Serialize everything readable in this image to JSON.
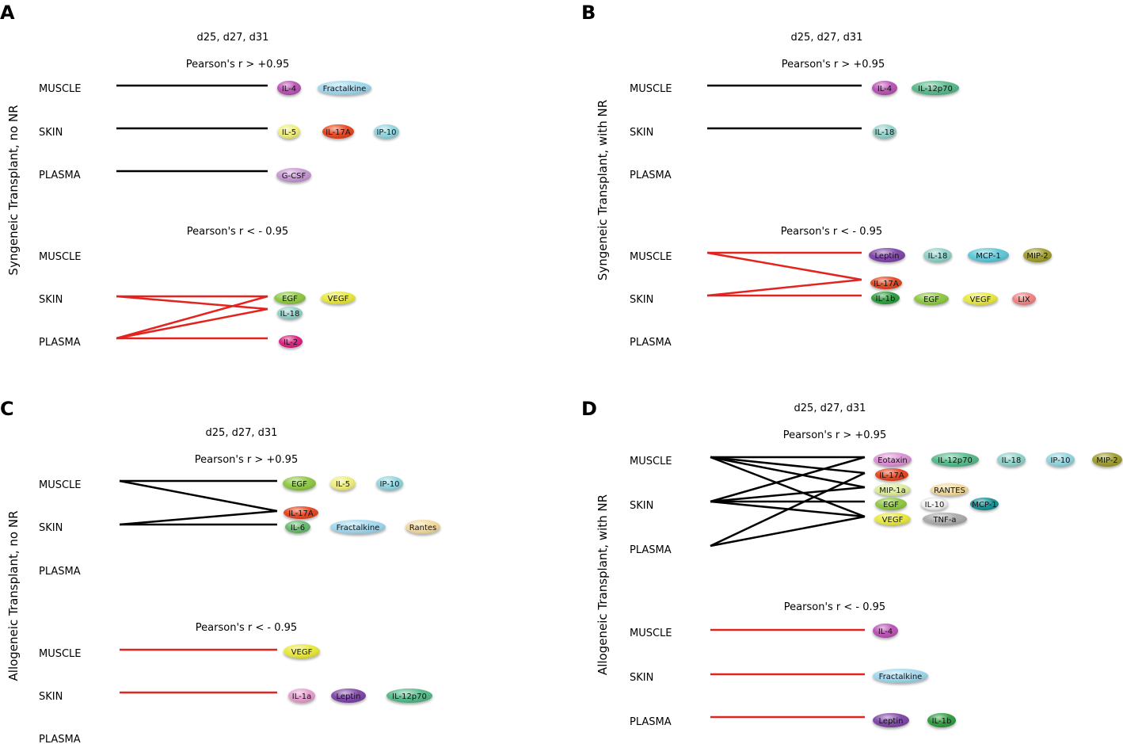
{
  "colors": {
    "positive_line": "#000000",
    "negative_line": "#e3231e",
    "IL-4": "#b74fb2",
    "Fractalkine": "#9fd7ee",
    "IL-5": "#eeee7a",
    "IL-17A": "#e3421c",
    "IP-10": "#8fd4de",
    "G-CSF": "#c595d2",
    "EGF": "#8cc63f",
    "VEGF": "#e8e83a",
    "IL-18": "#8fd0c8",
    "IL-2": "#d91d7d",
    "IL-12p70": "#52b888",
    "Leptin": "#7b43a6",
    "MCP-1": "#5bc5d6",
    "MIP-2": "#9c9a2b",
    "IL-1b": "#2c9a3a",
    "LIX": "#f07f80",
    "IL-6": "#62b86b",
    "Rantes": "#f2d99b",
    "RANTES": "#f2d99b",
    "IL-1a": "#e69ccd",
    "Eotaxin": "#d88fd1",
    "MIP-1a": "#dcec9a",
    "IL-10": "#f4f4f4",
    "TNF-a": "#a9a9a9",
    "MCP-1 (teal)": "#138e93"
  },
  "panels": [
    {
      "letter": "A",
      "title": "Syngeneic Transplant, no NR",
      "days": "d25, d27, d31",
      "pos_header": "Pearson's r > +0.95",
      "neg_header": "Pearson's r < - 0.95",
      "pos_rows": [
        "MUSCLE",
        "SKIN",
        "PLASMA"
      ],
      "neg_rows": [
        "MUSCLE",
        "SKIN",
        "PLASMA"
      ],
      "pos_cytokines": [
        "IL-4",
        "Fractalkine",
        "IL-5",
        "IL-17A",
        "IP-10",
        "G-CSF"
      ],
      "neg_cytokines": [
        "EGF",
        "VEGF",
        "IL-18",
        "IL-2"
      ]
    },
    {
      "letter": "B",
      "title": "Syngeneic Transplant, with NR",
      "days": "d25, d27, d31",
      "pos_header": "Pearson's r > +0.95",
      "neg_header": "Pearson's r < - 0.95",
      "pos_rows": [
        "MUSCLE",
        "SKIN",
        "PLASMA"
      ],
      "neg_rows": [
        "MUSCLE",
        "SKIN",
        "PLASMA"
      ],
      "pos_cytokines": [
        "IL-4",
        "IL-12p70",
        "IL-18"
      ],
      "neg_cytokines": [
        "Leptin",
        "IL-18",
        "MCP-1",
        "MIP-2",
        "IL-17A",
        "IL-1b",
        "EGF",
        "VEGF",
        "LIX"
      ]
    },
    {
      "letter": "C",
      "title": "Allogeneic Transplant, no NR",
      "days": "d25, d27, d31",
      "pos_header": "Pearson's r > +0.95",
      "neg_header": "Pearson's r < - 0.95",
      "pos_rows": [
        "MUSCLE",
        "SKIN",
        "PLASMA"
      ],
      "neg_rows": [
        "MUSCLE",
        "SKIN",
        "PLASMA"
      ],
      "pos_cytokines": [
        "EGF",
        "IL-5",
        "IP-10",
        "IL-17A",
        "IL-6",
        "Fractalkine",
        "Rantes"
      ],
      "neg_cytokines": [
        "VEGF",
        "IL-1a",
        "Leptin",
        "IL-12p70"
      ]
    },
    {
      "letter": "D",
      "title": "Allogeneic Transplant, with NR",
      "days": "d25, d27, d31",
      "pos_header": "Pearson's r > +0.95",
      "neg_header": "Pearson's r < - 0.95",
      "pos_rows": [
        "MUSCLE",
        "SKIN",
        "PLASMA"
      ],
      "neg_rows": [
        "MUSCLE",
        "SKIN",
        "PLASMA"
      ],
      "pos_cytokines": [
        "Eotaxin",
        "IL-12p70",
        "IL-18",
        "IP-10",
        "MIP-2",
        "IL-17A",
        "MIP-1a",
        "RANTES",
        "EGF",
        "IL-10",
        "MCP-1",
        "VEGF",
        "TNF-a"
      ],
      "neg_cytokines": [
        "IL-4",
        "Fractalkine",
        "Leptin",
        "IL-1b"
      ]
    }
  ]
}
